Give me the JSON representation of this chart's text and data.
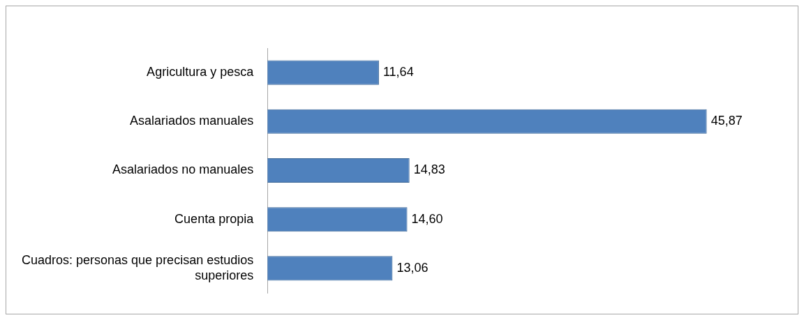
{
  "chart_data": {
    "type": "bar",
    "orientation": "horizontal",
    "categories": [
      "Agricultura y pesca",
      "Asalariados manuales",
      "Asalariados no manuales",
      "Cuenta propia",
      "Cuadros: personas que precisan estudios superiores"
    ],
    "values": [
      11.64,
      45.87,
      14.83,
      14.6,
      13.06
    ],
    "value_labels": [
      "11,64",
      "45,87",
      "14,83",
      "14,60",
      "13,06"
    ],
    "color": "#4f81bd"
  }
}
